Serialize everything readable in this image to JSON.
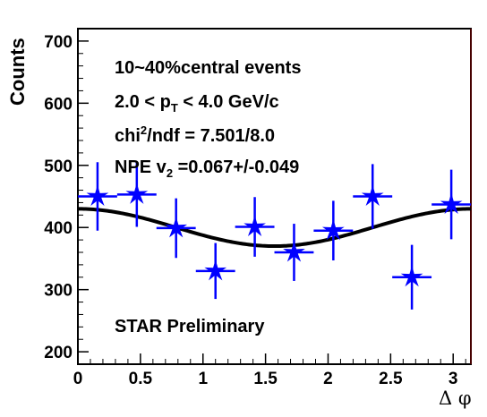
{
  "chart_data": {
    "type": "scatter",
    "xlabel": "Δ φ",
    "ylabel": "Counts",
    "xlim": [
      0,
      3.14159
    ],
    "ylim": [
      180,
      720
    ],
    "x_ticks": [
      0,
      0.5,
      1,
      1.5,
      2,
      2.5,
      3
    ],
    "x_tick_labels": [
      "0",
      "0.5",
      "1",
      "1.5",
      "2",
      "2.5",
      "3"
    ],
    "y_ticks": [
      200,
      300,
      400,
      500,
      600,
      700
    ],
    "y_tick_labels": [
      "200",
      "300",
      "400",
      "500",
      "600",
      "700"
    ],
    "series": [
      {
        "marker_color": "#0000ff",
        "x": [
          0.157,
          0.471,
          0.785,
          1.1,
          1.414,
          1.728,
          2.042,
          2.356,
          2.67,
          2.985
        ],
        "y": [
          450,
          453,
          399,
          330,
          401,
          360,
          395,
          450,
          320,
          437
        ],
        "y_err": [
          55,
          52,
          48,
          45,
          48,
          46,
          48,
          52,
          52,
          56
        ],
        "x_err": 0.157
      },
      {
        "line_color": "#000000",
        "fit": {
          "form": "A*(1+2*v2*cos(2*x))",
          "A": 400,
          "v2": 0.0375
        }
      }
    ],
    "annotations": {
      "line1": "10~40%central events",
      "line2_pre": "2.0 < p",
      "line2_sub": "T",
      "line2_post": " < 4.0 GeV/c",
      "line3_pre": "chi",
      "line3_sup": "2",
      "line3_post": "/ndf = 7.501/8.0",
      "line4_pre": "NPE v",
      "line4_sub": "2",
      "line4_post": " =0.067+/-0.049",
      "label": "STAR Preliminary"
    },
    "grid": false
  }
}
